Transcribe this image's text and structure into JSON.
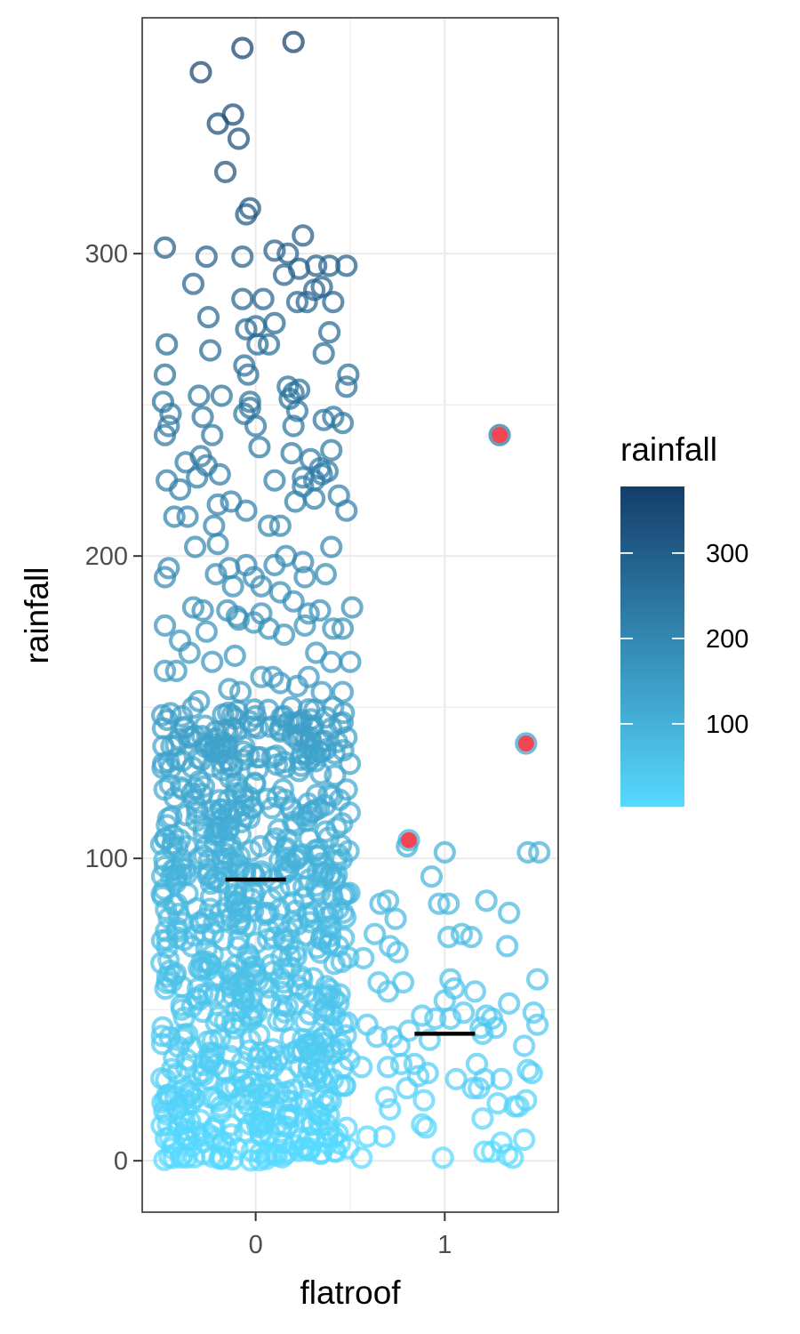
{
  "chart_data": {
    "type": "scatter",
    "title": "",
    "xlabel": "flatroof",
    "ylabel": "rainfall",
    "x_categories": [
      "0",
      "1"
    ],
    "xlim": [
      -0.6,
      1.6
    ],
    "ylim": [
      -17,
      378
    ],
    "y_ticks": [
      "0",
      "100",
      "200",
      "300"
    ],
    "grid": true,
    "legend": {
      "title": "rainfall",
      "position": "right",
      "ticks": [
        "100",
        "200",
        "300"
      ],
      "range": [
        3,
        378
      ],
      "colors": {
        "low": "#56d9ff",
        "high": "#143e6a"
      }
    },
    "colors": {
      "highlight": "#f24654",
      "median": "#000000",
      "panel_border": "#333333",
      "grid": "#ebebeb"
    },
    "medians": [
      {
        "x": 0,
        "y": 93
      },
      {
        "x": 1,
        "y": 42
      }
    ],
    "highlighted_points": [
      {
        "x": 0.81,
        "y": 106
      },
      {
        "x": 1.29,
        "y": 240
      },
      {
        "x": 1.43,
        "y": 138
      }
    ],
    "group1_points": [
      [
        0.8,
        104
      ],
      [
        0.81,
        106
      ],
      [
        1.29,
        240
      ],
      [
        1.43,
        138
      ],
      [
        1.44,
        102
      ],
      [
        1.5,
        102
      ],
      [
        1.0,
        102
      ],
      [
        0.93,
        94
      ],
      [
        0.66,
        85
      ],
      [
        0.7,
        86
      ],
      [
        0.74,
        80
      ],
      [
        0.97,
        85
      ],
      [
        1.02,
        85
      ],
      [
        1.09,
        75
      ],
      [
        1.22,
        86
      ],
      [
        1.34,
        82
      ],
      [
        0.63,
        75
      ],
      [
        0.71,
        71
      ],
      [
        0.75,
        69
      ],
      [
        1.02,
        74
      ],
      [
        1.14,
        74
      ],
      [
        1.33,
        71
      ],
      [
        0.57,
        67
      ],
      [
        0.65,
        59
      ],
      [
        0.7,
        56
      ],
      [
        0.78,
        59
      ],
      [
        1.03,
        60
      ],
      [
        1.05,
        57
      ],
      [
        1.16,
        56
      ],
      [
        1.22,
        48
      ],
      [
        1.25,
        47
      ],
      [
        1.34,
        52
      ],
      [
        1.49,
        60
      ],
      [
        0.88,
        48
      ],
      [
        0.95,
        47
      ],
      [
        1.0,
        53
      ],
      [
        1.03,
        47
      ],
      [
        1.1,
        49
      ],
      [
        1.19,
        44
      ],
      [
        1.27,
        44
      ],
      [
        1.47,
        49
      ],
      [
        1.49,
        45
      ],
      [
        0.59,
        45
      ],
      [
        0.64,
        41
      ],
      [
        0.72,
        41
      ],
      [
        0.76,
        38
      ],
      [
        0.81,
        43
      ],
      [
        0.92,
        40
      ],
      [
        1.2,
        42
      ],
      [
        1.42,
        38
      ],
      [
        0.56,
        31
      ],
      [
        0.7,
        31
      ],
      [
        0.77,
        32
      ],
      [
        0.84,
        32
      ],
      [
        0.86,
        28
      ],
      [
        0.91,
        29
      ],
      [
        1.06,
        27
      ],
      [
        1.17,
        32
      ],
      [
        1.18,
        24
      ],
      [
        1.21,
        27
      ],
      [
        1.3,
        27
      ],
      [
        1.44,
        30
      ],
      [
        1.46,
        29
      ],
      [
        0.69,
        21
      ],
      [
        0.71,
        17
      ],
      [
        0.8,
        24
      ],
      [
        0.89,
        20
      ],
      [
        0.9,
        11
      ],
      [
        1.15,
        24
      ],
      [
        1.28,
        19
      ],
      [
        1.37,
        18
      ],
      [
        1.39,
        18
      ],
      [
        1.43,
        20
      ],
      [
        0.59,
        8
      ],
      [
        0.68,
        8
      ],
      [
        0.88,
        12
      ],
      [
        1.2,
        14
      ],
      [
        1.21,
        3
      ],
      [
        1.25,
        3
      ],
      [
        1.3,
        6
      ],
      [
        1.42,
        7
      ],
      [
        0.56,
        1
      ],
      [
        0.99,
        1
      ],
      [
        1.33,
        2
      ],
      [
        1.36,
        1
      ]
    ],
    "group0_upper_points": [
      [
        -0.07,
        368
      ],
      [
        0.2,
        370
      ],
      [
        -0.29,
        360
      ],
      [
        -0.2,
        343
      ],
      [
        -0.12,
        346
      ],
      [
        -0.09,
        338
      ],
      [
        -0.16,
        327
      ],
      [
        -0.05,
        313
      ],
      [
        -0.03,
        315
      ],
      [
        -0.48,
        302
      ],
      [
        -0.26,
        299
      ],
      [
        -0.07,
        299
      ],
      [
        0.1,
        301
      ],
      [
        0.17,
        300
      ],
      [
        0.25,
        306
      ],
      [
        0.23,
        295
      ],
      [
        0.32,
        296
      ],
      [
        0.39,
        296
      ],
      [
        0.48,
        296
      ],
      [
        0.15,
        293
      ],
      [
        -0.33,
        290
      ],
      [
        0.31,
        288
      ],
      [
        0.35,
        289
      ],
      [
        -0.07,
        285
      ],
      [
        0.04,
        285
      ],
      [
        0.22,
        284
      ],
      [
        0.27,
        284
      ],
      [
        0.41,
        284
      ],
      [
        -0.25,
        279
      ],
      [
        -0.05,
        275
      ],
      [
        0.0,
        276
      ],
      [
        0.1,
        277
      ],
      [
        0.39,
        274
      ],
      [
        -0.47,
        270
      ],
      [
        0.01,
        270
      ],
      [
        0.07,
        270
      ],
      [
        -0.24,
        268
      ],
      [
        0.36,
        267
      ],
      [
        -0.06,
        263
      ],
      [
        -0.04,
        260
      ],
      [
        0.49,
        260
      ],
      [
        -0.48,
        260
      ],
      [
        0.48,
        256
      ],
      [
        0.17,
        256
      ],
      [
        0.2,
        254
      ],
      [
        0.23,
        255
      ],
      [
        0.18,
        252
      ],
      [
        -0.3,
        253
      ],
      [
        -0.18,
        253
      ],
      [
        -0.03,
        251
      ],
      [
        -0.49,
        251
      ],
      [
        -0.03,
        249
      ],
      [
        0.22,
        248
      ],
      [
        -0.06,
        247
      ],
      [
        -0.45,
        247
      ],
      [
        -0.28,
        246
      ],
      [
        0.41,
        246
      ],
      [
        0.36,
        245
      ],
      [
        0.46,
        244
      ],
      [
        -0.46,
        243
      ],
      [
        0.2,
        243
      ],
      [
        0.0,
        243
      ],
      [
        -0.48,
        240
      ],
      [
        -0.23,
        240
      ],
      [
        0.4,
        235
      ],
      [
        0.02,
        236
      ],
      [
        -0.37,
        231
      ],
      [
        -0.29,
        233
      ],
      [
        0.19,
        234
      ],
      [
        0.29,
        232
      ],
      [
        0.34,
        229
      ],
      [
        0.25,
        226
      ],
      [
        0.31,
        225
      ],
      [
        0.1,
        225
      ],
      [
        0.25,
        223
      ],
      [
        0.35,
        227
      ],
      [
        0.38,
        228
      ],
      [
        0.21,
        218
      ],
      [
        -0.47,
        225
      ],
      [
        -0.4,
        222
      ],
      [
        -0.31,
        226
      ],
      [
        -0.26,
        230
      ],
      [
        -0.19,
        227
      ],
      [
        0.31,
        219
      ],
      [
        0.44,
        220
      ],
      [
        0.48,
        215
      ],
      [
        -0.2,
        217
      ],
      [
        -0.13,
        218
      ],
      [
        -0.05,
        215
      ],
      [
        -0.43,
        213
      ],
      [
        -0.36,
        213
      ],
      [
        -0.22,
        210
      ],
      [
        0.07,
        210
      ],
      [
        0.13,
        210
      ],
      [
        -0.32,
        203
      ],
      [
        -0.2,
        204
      ],
      [
        0.4,
        203
      ],
      [
        0.16,
        200
      ],
      [
        0.25,
        198
      ],
      [
        -0.21,
        194
      ],
      [
        -0.14,
        196
      ],
      [
        -0.05,
        197
      ],
      [
        -0.01,
        193
      ],
      [
        0.03,
        190
      ],
      [
        0.1,
        197
      ],
      [
        0.26,
        193
      ],
      [
        0.37,
        194
      ],
      [
        -0.48,
        193
      ],
      [
        -0.46,
        196
      ],
      [
        -0.12,
        190
      ],
      [
        0.13,
        188
      ],
      [
        0.2,
        185
      ],
      [
        0.03,
        181
      ],
      [
        0.28,
        181
      ],
      [
        0.34,
        182
      ],
      [
        0.51,
        183
      ],
      [
        -0.33,
        183
      ],
      [
        -0.28,
        182
      ],
      [
        -0.15,
        182
      ],
      [
        -0.1,
        180
      ],
      [
        0.41,
        176
      ],
      [
        0.46,
        176
      ],
      [
        -0.48,
        177
      ],
      [
        -0.4,
        172
      ],
      [
        -0.26,
        175
      ],
      [
        -0.09,
        179
      ],
      [
        -0.01,
        178
      ],
      [
        0.07,
        176
      ],
      [
        0.15,
        174
      ],
      [
        0.26,
        177
      ],
      [
        0.32,
        168
      ],
      [
        -0.35,
        168
      ],
      [
        -0.23,
        165
      ],
      [
        -0.11,
        167
      ],
      [
        0.4,
        165
      ],
      [
        0.5,
        165
      ],
      [
        -0.48,
        162
      ],
      [
        -0.42,
        162
      ],
      [
        0.03,
        160
      ],
      [
        0.09,
        160
      ],
      [
        0.13,
        158
      ],
      [
        0.22,
        157
      ],
      [
        0.28,
        160
      ],
      [
        -0.14,
        156
      ],
      [
        -0.08,
        155
      ],
      [
        0.35,
        155
      ],
      [
        0.46,
        155
      ],
      [
        -0.3,
        152
      ],
      [
        0.19,
        150
      ],
      [
        0.41,
        150
      ],
      [
        -0.45,
        148
      ],
      [
        -0.39,
        147
      ],
      [
        0.0,
        147
      ],
      [
        0.23,
        145
      ],
      [
        0.4,
        143
      ],
      [
        0.48,
        140
      ],
      [
        -0.49,
        143
      ],
      [
        -0.21,
        142
      ],
      [
        0.13,
        142
      ],
      [
        0.29,
        140
      ]
    ]
  }
}
